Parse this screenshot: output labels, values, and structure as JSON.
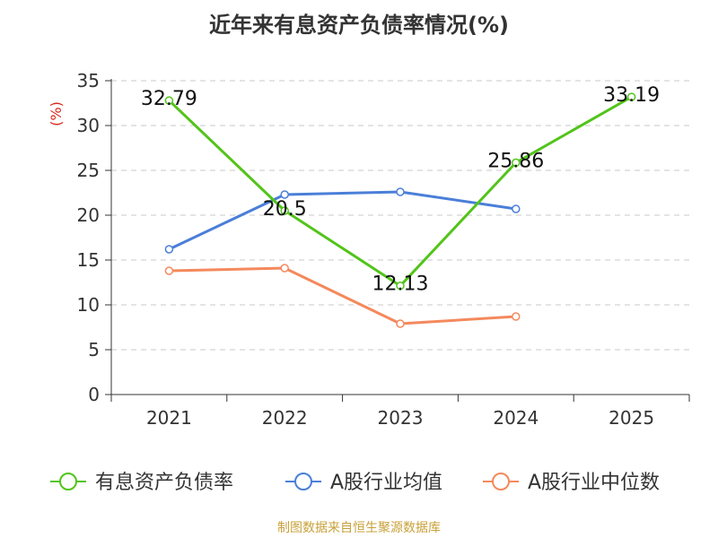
{
  "chart_data": {
    "type": "line",
    "title": "近年来有息资产负债率情况(%)",
    "ylabel": "(%)",
    "xlabel": "",
    "categories": [
      "2021",
      "2022",
      "2023",
      "2024",
      "2025"
    ],
    "ylim": [
      0,
      35
    ],
    "yticks": [
      0,
      5,
      10,
      15,
      20,
      25,
      30,
      35
    ],
    "grid": true,
    "legend": "bottom",
    "series": [
      {
        "name": "有息资产负债率",
        "color": "#52c41a",
        "values": [
          32.79,
          20.5,
          12.13,
          25.86,
          33.19
        ],
        "labels": [
          "32.79",
          "20.5",
          "12.13",
          "25.86",
          "33.19"
        ]
      },
      {
        "name": "A股行业均值",
        "color": "#4a7fd8",
        "values": [
          16.2,
          22.3,
          22.6,
          20.7,
          null
        ]
      },
      {
        "name": "A股行业中位数",
        "color": "#f4895c",
        "values": [
          13.8,
          14.1,
          7.9,
          8.7,
          null
        ]
      }
    ]
  },
  "source": "制图数据来自恒生聚源数据库"
}
